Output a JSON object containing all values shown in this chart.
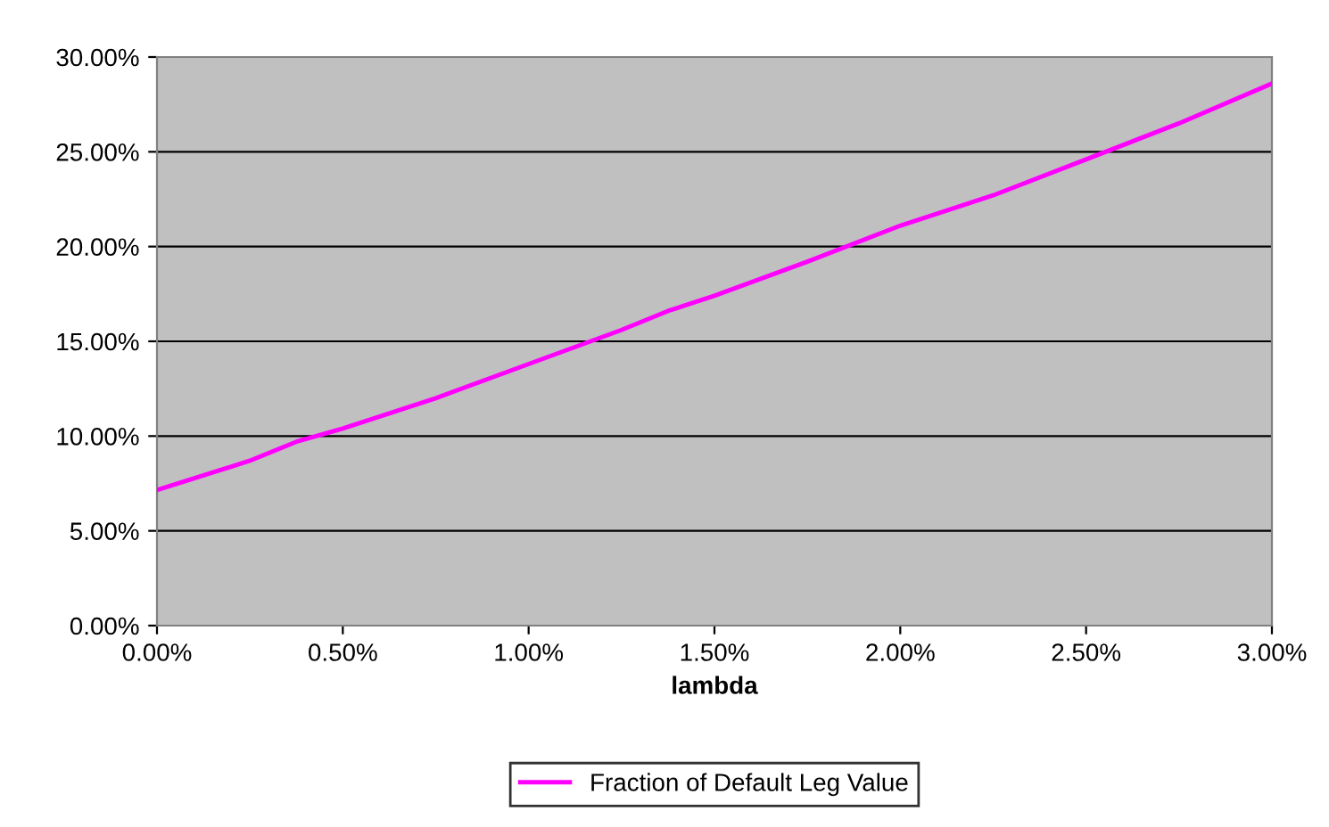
{
  "chart_data": {
    "type": "line",
    "xlabel": "lambda",
    "x": [
      0,
      0.25,
      0.375,
      0.5,
      0.75,
      1.0,
      1.25,
      1.375,
      1.5,
      1.75,
      2.0,
      2.25,
      2.5,
      2.75,
      3.0
    ],
    "series": [
      {
        "name": "Fraction of Default Leg Value",
        "color": "#ff00ff",
        "values": [
          7.15,
          8.7,
          9.7,
          10.4,
          12.0,
          13.8,
          15.6,
          16.6,
          17.4,
          19.2,
          21.1,
          22.7,
          24.6,
          26.5,
          28.6
        ]
      }
    ],
    "xlim": [
      0,
      3
    ],
    "ylim": [
      0,
      30
    ],
    "xticks": [
      {
        "value": 0,
        "label": "0.00%"
      },
      {
        "value": 0.5,
        "label": "0.50%"
      },
      {
        "value": 1,
        "label": "1.00%"
      },
      {
        "value": 1.5,
        "label": "1.50%"
      },
      {
        "value": 2,
        "label": "2.00%"
      },
      {
        "value": 2.5,
        "label": "2.50%"
      },
      {
        "value": 3,
        "label": "3.00%"
      }
    ],
    "yticks": [
      {
        "value": 0,
        "label": "0.00%"
      },
      {
        "value": 5,
        "label": "5.00%"
      },
      {
        "value": 10,
        "label": "10.00%"
      },
      {
        "value": 15,
        "label": "15.00%"
      },
      {
        "value": 20,
        "label": "20.00%"
      },
      {
        "value": 25,
        "label": "25.00%"
      },
      {
        "value": 30,
        "label": "30.00%"
      }
    ],
    "grid": "y",
    "legend": "bottom",
    "marker": "none",
    "line_style": "solid"
  }
}
